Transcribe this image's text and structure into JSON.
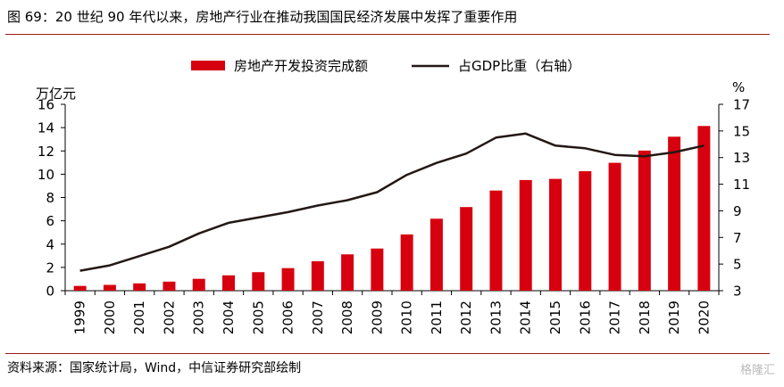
{
  "figure": {
    "title": "图 69：20 世纪 90 年代以来，房地产行业在推动我国国民经济发展中发挥了重要作用",
    "source": "资料来源：国家统计局，Wind，中信证券研究部绘制",
    "watermark": "格隆汇"
  },
  "chart_data": {
    "type": "bar",
    "categories": [
      "1999",
      "2000",
      "2001",
      "2002",
      "2003",
      "2004",
      "2005",
      "2006",
      "2007",
      "2008",
      "2009",
      "2010",
      "2011",
      "2012",
      "2013",
      "2014",
      "2015",
      "2016",
      "2017",
      "2018",
      "2019",
      "2020"
    ],
    "ylabel": "万亿元",
    "ylabel_right": "%",
    "ylim": [
      0,
      16
    ],
    "yticks": [
      0,
      2,
      4,
      6,
      8,
      10,
      12,
      14,
      16
    ],
    "ylim_right": [
      3,
      17
    ],
    "yticks_right": [
      3,
      5,
      7,
      9,
      11,
      13,
      15,
      17
    ],
    "legend_position": "top-center",
    "grid": false,
    "series": [
      {
        "name": "房地产开发投资完成额",
        "type": "bar",
        "axis": "left",
        "color": "#d7000f",
        "values": [
          0.41,
          0.5,
          0.63,
          0.78,
          1.02,
          1.32,
          1.59,
          1.94,
          2.53,
          3.12,
          3.62,
          4.83,
          6.18,
          7.18,
          8.6,
          9.5,
          9.6,
          10.26,
          10.98,
          12.03,
          13.22,
          14.14
        ]
      },
      {
        "name": "占GDP比重（右轴）",
        "type": "line",
        "axis": "right",
        "color": "#231815",
        "values": [
          4.5,
          4.9,
          5.6,
          6.3,
          7.3,
          8.1,
          8.5,
          8.9,
          9.4,
          9.8,
          10.4,
          11.7,
          12.6,
          13.3,
          14.5,
          14.8,
          13.9,
          13.7,
          13.2,
          13.1,
          13.4,
          13.9
        ]
      }
    ]
  }
}
